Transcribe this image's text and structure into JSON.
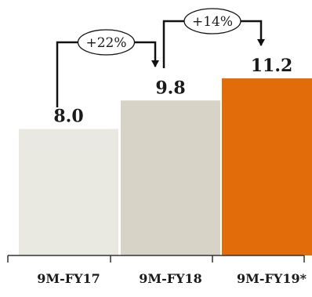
{
  "chart_data": {
    "type": "bar",
    "categories": [
      "9M-FY17",
      "9M-FY18",
      "9M-FY19*"
    ],
    "values": [
      8.0,
      9.8,
      11.2
    ],
    "value_labels": [
      "8.0",
      "9.8",
      "11.2"
    ],
    "bar_colors": [
      "#e9e8e1",
      "#d7d3c6",
      "#e36c0a"
    ],
    "ylim": [
      0,
      11.2
    ],
    "title": "",
    "xlabel": "",
    "ylabel": "",
    "grid": false,
    "growth_annotations": [
      {
        "from": 0,
        "to": 1,
        "label": "+22%"
      },
      {
        "from": 1,
        "to": 2,
        "label": "+14%"
      }
    ]
  },
  "colors": {
    "axis": "#333333",
    "text": "#1a1a1a",
    "bracket": "#111111"
  }
}
